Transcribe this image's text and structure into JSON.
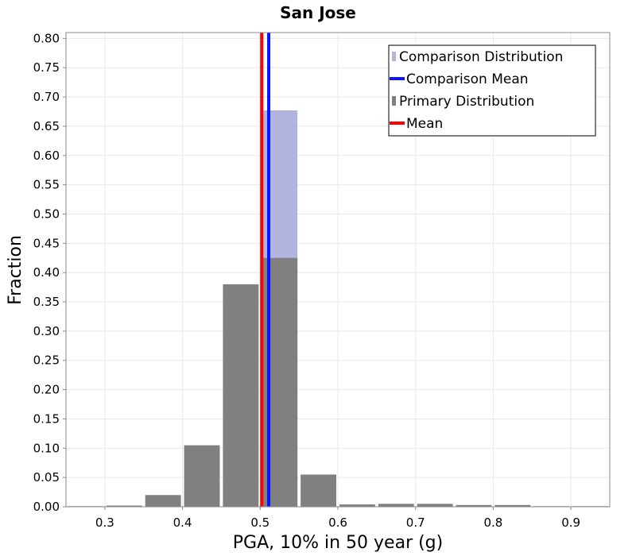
{
  "chart_data": {
    "type": "bar",
    "title": "San Jose",
    "xlabel": "PGA, 10% in 50 year (g)",
    "ylabel": "Fraction",
    "xlim": [
      0.25,
      0.95
    ],
    "ylim": [
      0.0,
      0.81
    ],
    "grid": true,
    "legend_position": "top-right",
    "bin_width": 0.05,
    "x_ticks": [
      "0.3",
      "0.4",
      "0.5",
      "0.6",
      "0.7",
      "0.8",
      "0.9"
    ],
    "y_ticks": [
      "0.00",
      "0.05",
      "0.10",
      "0.15",
      "0.20",
      "0.25",
      "0.30",
      "0.35",
      "0.40",
      "0.45",
      "0.50",
      "0.55",
      "0.60",
      "0.65",
      "0.70",
      "0.75",
      "0.80"
    ],
    "bin_centers": [
      0.3,
      0.35,
      0.4,
      0.45,
      0.5,
      0.55,
      0.6,
      0.65,
      0.7,
      0.75,
      0.8,
      0.85,
      0.9
    ],
    "series": [
      {
        "name": "Comparison Distribution",
        "type": "bar",
        "color": "#b3b3e0",
        "x": [
          0.525
        ],
        "values": [
          0.677
        ]
      },
      {
        "name": "Comparison Mean",
        "type": "vline",
        "color": "#0a14ff",
        "value": 0.511
      },
      {
        "name": "Primary Distribution",
        "type": "bar",
        "color": "#808080",
        "x": [
          0.275,
          0.325,
          0.375,
          0.425,
          0.475,
          0.525,
          0.575,
          0.625,
          0.675,
          0.725,
          0.775,
          0.825,
          0.875,
          0.925
        ],
        "values": [
          0.001,
          0.002,
          0.02,
          0.105,
          0.38,
          0.425,
          0.055,
          0.004,
          0.005,
          0.005,
          0.003,
          0.003,
          0.001,
          0.001
        ]
      },
      {
        "name": "Mean",
        "type": "vline",
        "color": "#ff0000",
        "value": 0.502
      }
    ]
  }
}
